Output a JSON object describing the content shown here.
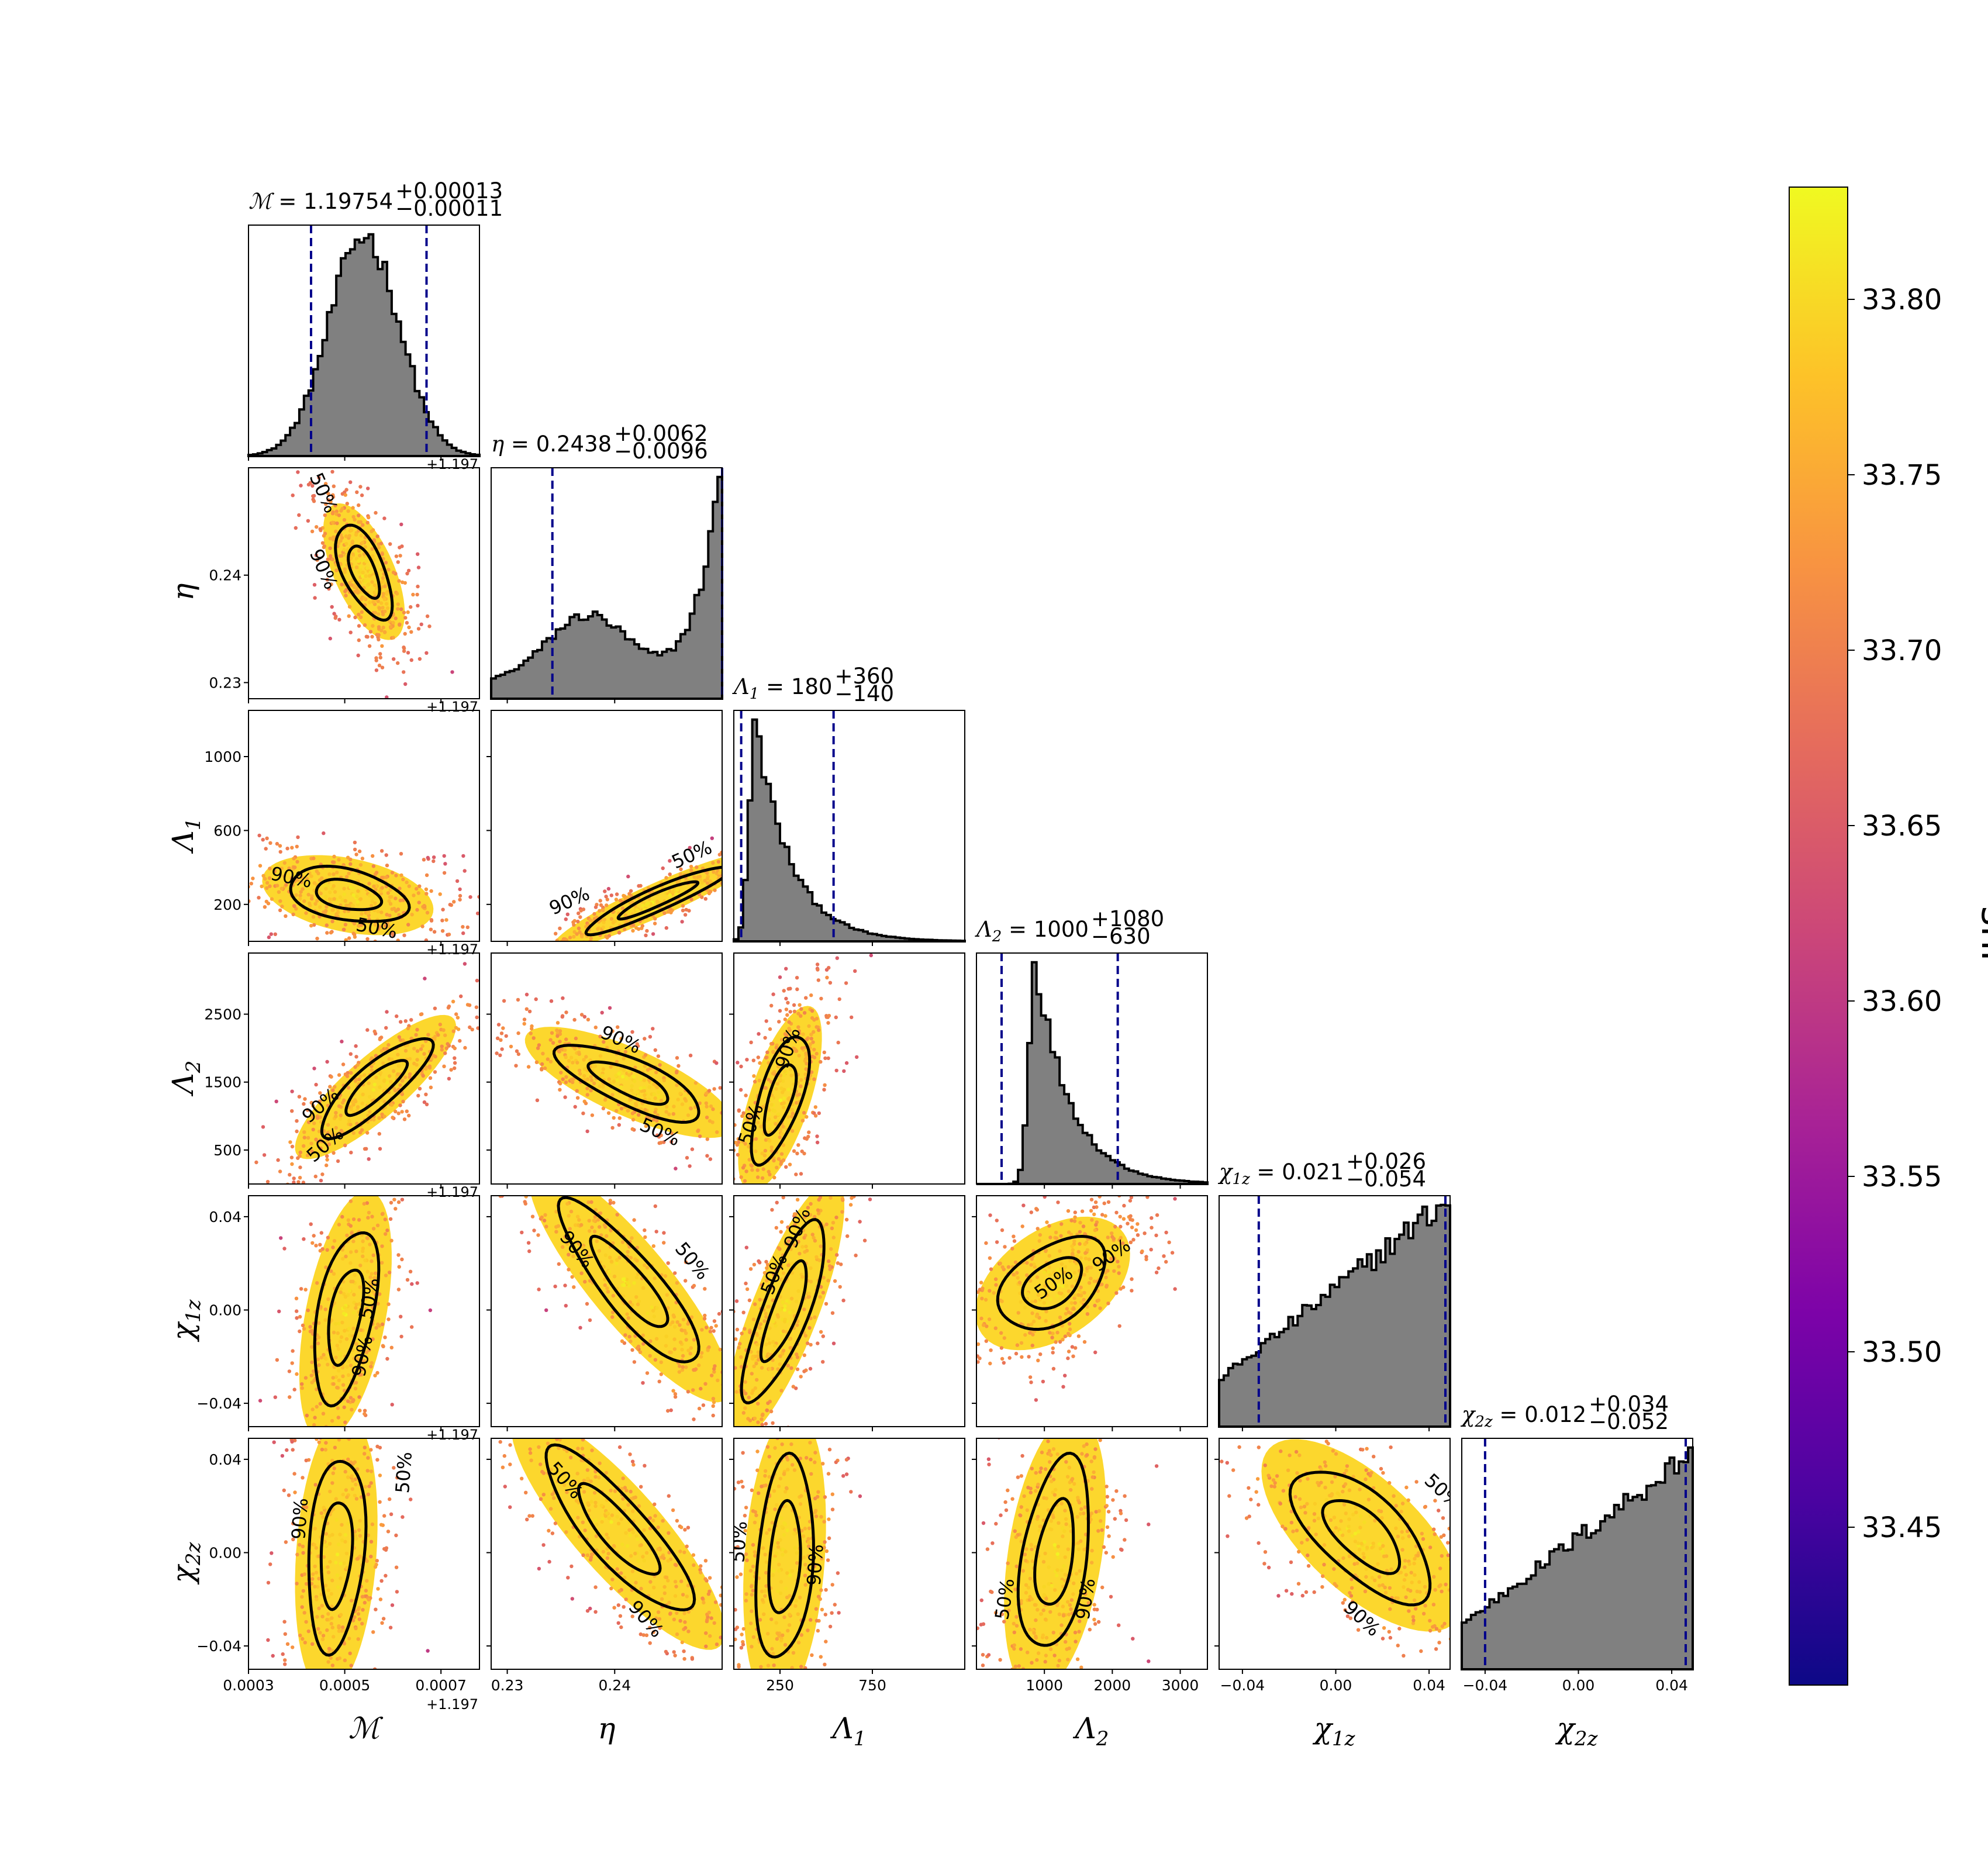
{
  "chart_data": {
    "type": "scatter",
    "subtype": "corner-plot",
    "parameters": [
      {
        "key": "mc",
        "label": "ℳ",
        "sub": "",
        "range": [
          0.0003,
          0.00078
        ],
        "ticks": [
          0.0003,
          0.0005,
          0.0007
        ],
        "tick_labels": [
          "0.0003",
          "0.0005",
          "0.0007"
        ],
        "offset": "+1.197",
        "title": {
          "symbol": "ℳ",
          "sub": "",
          "value": "1.19754",
          "plus": "+0.00013",
          "minus": "−0.00011"
        },
        "hist": {
          "peak": 0.00054,
          "lo": 0.00043,
          "hi": 0.00067
        }
      },
      {
        "key": "eta",
        "label": "η",
        "sub": "",
        "range": [
          0.2285,
          0.25
        ],
        "ticks": [
          0.23,
          0.24
        ],
        "tick_labels": [
          "0.23",
          "0.24"
        ],
        "offset": "",
        "title": {
          "symbol": "η",
          "sub": "",
          "value": "0.2438",
          "plus": "+0.0062",
          "minus": "−0.0096"
        },
        "hist": {
          "peak": 0.25,
          "lo": 0.2342,
          "hi": 0.25
        }
      },
      {
        "key": "lam1",
        "label": "Λ",
        "sub": "1",
        "range": [
          0,
          1250
        ],
        "ticks": [
          250,
          750
        ],
        "tick_labels": [
          "250",
          "750"
        ],
        "offset": "",
        "title": {
          "symbol": "Λ",
          "sub": "1",
          "value": "180",
          "plus": "+360",
          "minus": "−140"
        },
        "hist": {
          "peak": 120,
          "lo": 40,
          "hi": 540
        }
      },
      {
        "key": "lam2",
        "label": "Λ",
        "sub": "2",
        "range": [
          0,
          3400
        ],
        "ticks": [
          1000,
          2000,
          3000
        ],
        "tick_labels": [
          "1000",
          "2000",
          "3000"
        ],
        "offset": "",
        "title": {
          "symbol": "Λ",
          "sub": "2",
          "value": "1000",
          "plus": "+1080",
          "minus": "−630"
        },
        "hist": {
          "peak": 870,
          "lo": 370,
          "hi": 2080
        }
      },
      {
        "key": "chi1",
        "label": "χ",
        "sub": "1z",
        "range": [
          -0.05,
          0.049
        ],
        "ticks": [
          -0.04,
          0.0,
          0.04
        ],
        "tick_labels": [
          "−0.04",
          "0.00",
          "0.04"
        ],
        "offset": "",
        "title": {
          "symbol": "χ",
          "sub": "1z",
          "value": "0.021",
          "plus": "+0.026",
          "minus": "−0.054"
        },
        "hist": {
          "peak": 0.045,
          "lo": -0.033,
          "hi": 0.047
        }
      },
      {
        "key": "chi2",
        "label": "χ",
        "sub": "2z",
        "range": [
          -0.05,
          0.049
        ],
        "ticks": [
          -0.04,
          0.0,
          0.04
        ],
        "tick_labels": [
          "−0.04",
          "0.00",
          "0.04"
        ],
        "offset": "",
        "title": {
          "symbol": "χ",
          "sub": "2z",
          "value": "0.012",
          "plus": "+0.034",
          "minus": "−0.052"
        },
        "hist": {
          "peak": 0.045,
          "lo": -0.04,
          "hi": 0.046
        }
      }
    ],
    "y_ticks": {
      "eta": {
        "ticks": [
          0.23,
          0.24
        ],
        "tick_labels": [
          "0.23",
          "0.24"
        ]
      },
      "lam1": {
        "ticks": [
          200,
          600,
          1000
        ],
        "tick_labels": [
          "200",
          "600",
          "1000"
        ]
      },
      "lam2": {
        "ticks": [
          500,
          1500,
          2500
        ],
        "tick_labels": [
          "500",
          "1500",
          "2500"
        ]
      },
      "chi1": {
        "ticks": [
          -0.04,
          0.0,
          0.04
        ],
        "tick_labels": [
          "−0.04",
          "0.00",
          "0.04"
        ]
      },
      "chi2": {
        "ticks": [
          -0.04,
          0.0,
          0.04
        ],
        "tick_labels": [
          "−0.04",
          "0.00",
          "0.04"
        ]
      }
    },
    "contour_levels": [
      "50%",
      "90%"
    ],
    "colorbar": {
      "label": "snr",
      "range": [
        33.405,
        33.832
      ],
      "ticks": [
        33.45,
        33.5,
        33.55,
        33.6,
        33.65,
        33.7,
        33.75,
        33.8
      ],
      "tick_labels": [
        "33.45",
        "33.50",
        "33.55",
        "33.60",
        "33.65",
        "33.70",
        "33.75",
        "33.80"
      ],
      "colormap": "plasma"
    },
    "colors": {
      "hist_fill": "#808080",
      "quantile_line": "#00008b",
      "contour": "#000000"
    }
  }
}
